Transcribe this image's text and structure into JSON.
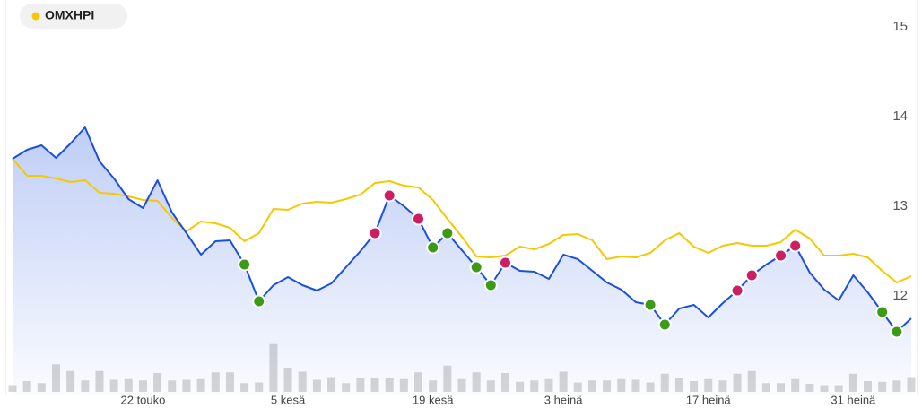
{
  "chart_data": {
    "type": "line",
    "legend": "top-left",
    "categories": [
      null,
      null,
      null,
      null,
      null,
      null,
      null,
      null,
      null,
      "22 touko",
      null,
      null,
      null,
      null,
      null,
      null,
      null,
      null,
      null,
      "5 kesä",
      null,
      null,
      null,
      null,
      null,
      null,
      null,
      null,
      null,
      "19 kesä",
      null,
      null,
      null,
      null,
      null,
      null,
      null,
      null,
      "3 heinä",
      null,
      null,
      null,
      null,
      null,
      null,
      null,
      null,
      null,
      "17 heinä",
      null,
      null,
      null,
      null,
      null,
      null,
      null,
      null,
      null,
      "31 heinä",
      null,
      null,
      null,
      null
    ],
    "ylim": [
      10.9,
      15.3
    ],
    "yticks": [
      12,
      13,
      14,
      15
    ],
    "series": [
      {
        "color": "#1a4fe0",
        "values": [
          13.53,
          13.63,
          13.68,
          13.54,
          13.7,
          13.88,
          13.5,
          13.31,
          13.08,
          12.98,
          13.29,
          12.93,
          12.7,
          12.46,
          12.61,
          12.62,
          12.35,
          11.94,
          12.12,
          12.21,
          12.12,
          12.06,
          12.14,
          12.32,
          12.5,
          12.7,
          13.12,
          13.0,
          12.86,
          12.54,
          12.7,
          12.51,
          12.32,
          12.12,
          12.37,
          12.28,
          12.27,
          12.19,
          12.46,
          12.41,
          12.28,
          12.15,
          12.07,
          11.93,
          11.9,
          11.68,
          11.86,
          11.9,
          11.76,
          11.92,
          12.06,
          12.23,
          12.35,
          12.45,
          12.56,
          12.26,
          12.07,
          11.95,
          12.23,
          12.04,
          11.82,
          11.6,
          11.75
        ]
      },
      {
        "name": "OMXHPI",
        "color": "#f5c800",
        "values": [
          13.53,
          13.34,
          13.34,
          13.31,
          13.27,
          13.29,
          13.15,
          13.14,
          13.11,
          13.07,
          13.06,
          12.87,
          12.72,
          12.83,
          12.81,
          12.76,
          12.61,
          12.7,
          12.97,
          12.96,
          13.03,
          13.05,
          13.04,
          13.08,
          13.13,
          13.26,
          13.28,
          13.23,
          13.21,
          13.07,
          12.86,
          12.66,
          12.44,
          12.43,
          12.45,
          12.55,
          12.52,
          12.58,
          12.68,
          12.69,
          12.62,
          12.41,
          12.44,
          12.43,
          12.48,
          12.62,
          12.7,
          12.55,
          12.48,
          12.56,
          12.59,
          12.56,
          12.56,
          12.6,
          12.74,
          12.64,
          12.45,
          12.45,
          12.47,
          12.43,
          12.28,
          12.15,
          12.22
        ]
      }
    ],
    "markers": [
      {
        "color": "#3c9a16",
        "values": [
          null,
          null,
          null,
          null,
          null,
          null,
          null,
          null,
          null,
          null,
          null,
          null,
          null,
          null,
          null,
          null,
          12.35,
          11.94,
          null,
          null,
          null,
          null,
          null,
          null,
          null,
          null,
          null,
          null,
          null,
          12.54,
          12.7,
          null,
          12.32,
          12.12,
          null,
          null,
          null,
          null,
          null,
          null,
          null,
          null,
          null,
          null,
          11.9,
          11.68,
          null,
          null,
          null,
          null,
          null,
          null,
          null,
          null,
          null,
          null,
          null,
          null,
          null,
          null,
          11.82,
          11.6,
          null
        ]
      },
      {
        "color": "#cc1f63",
        "values": [
          null,
          null,
          null,
          null,
          null,
          null,
          null,
          null,
          null,
          null,
          null,
          null,
          null,
          null,
          null,
          null,
          null,
          null,
          null,
          null,
          null,
          null,
          null,
          null,
          null,
          12.7,
          13.12,
          null,
          12.86,
          null,
          null,
          null,
          null,
          null,
          12.37,
          null,
          null,
          null,
          null,
          null,
          null,
          null,
          null,
          null,
          null,
          null,
          null,
          null,
          null,
          null,
          12.06,
          12.23,
          null,
          12.45,
          12.56,
          null,
          null,
          null,
          null,
          null,
          null,
          null,
          null
        ]
      }
    ],
    "volume": {
      "color": "#d6d6d6",
      "lim": [
        0,
        100
      ],
      "values": [
        10,
        16,
        13,
        41,
        31,
        17,
        31,
        18,
        19,
        17,
        28,
        17,
        18,
        19,
        29,
        29,
        13,
        14,
        71,
        36,
        30,
        18,
        22,
        13,
        21,
        21,
        21,
        19,
        29,
        17,
        39,
        19,
        29,
        17,
        28,
        15,
        17,
        19,
        30,
        14,
        17,
        17,
        19,
        18,
        14,
        27,
        21,
        16,
        19,
        17,
        27,
        31,
        13,
        13,
        19,
        12,
        10,
        10,
        27,
        16,
        15,
        17,
        22
      ]
    }
  }
}
